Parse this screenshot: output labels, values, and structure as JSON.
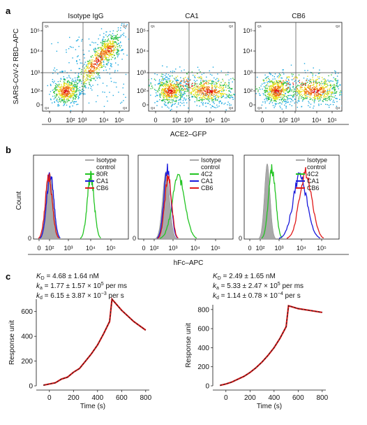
{
  "panels": {
    "a": {
      "label": "a",
      "y_label": "SARS-CoV-2 RBD–APC",
      "x_label": "ACE2–GFP",
      "plots": [
        {
          "title": "Isotype IgG",
          "pattern": "diagonal"
        },
        {
          "title": "CA1",
          "pattern": "blocked"
        },
        {
          "title": "CB6",
          "pattern": "blocked"
        }
      ],
      "y_ticks": [
        "10⁵",
        "10⁴",
        "10³",
        "10²",
        "0"
      ],
      "x_ticks": [
        "0",
        "10²",
        "10³",
        "10⁴",
        "10⁵"
      ],
      "quadrants": [
        "Q1",
        "Q2",
        "Q4",
        "Q3"
      ]
    },
    "b": {
      "label": "b",
      "y_label": "Count",
      "x_label": "hFc–APC",
      "x_ticks": [
        "0",
        "10²",
        "10³",
        "10⁴",
        "10⁵"
      ],
      "plots": [
        {
          "legend": [
            "Isotype control",
            "80R",
            "CA1",
            "CB6"
          ]
        },
        {
          "legend": [
            "Isotype control",
            "4C2",
            "CA1",
            "CB6"
          ]
        },
        {
          "legend": [
            "Isotype control",
            "4C2",
            "CA1",
            "CB6"
          ]
        }
      ],
      "legend_colors": [
        "#a9a9a9",
        "#22c422",
        "#1a1adc",
        "#e01818"
      ]
    },
    "c": {
      "label": "c",
      "y_label": "Response unit",
      "x_label": "Time (s)",
      "plots": [
        {
          "kd_label": "K",
          "kd_sub": "D",
          "kd_value": " = 4.68 ± 1.64 nM",
          "ka_label": "k",
          "ka_sub": "a",
          "ka_value": " = 1.77 ± 1.57 × 10",
          "ka_exp": "5",
          "ka_unit": " per ms",
          "kdiss_label": "k",
          "kdiss_sub": "d",
          "kdiss_value": " = 6.15 ± 3.87 × 10",
          "kdiss_exp": "−3",
          "kdiss_unit": " per s",
          "y_ticks": [
            "0",
            "200",
            "400",
            "600"
          ],
          "x_ticks": [
            "0",
            "200",
            "400",
            "600",
            "800"
          ]
        },
        {
          "kd_label": "K",
          "kd_sub": "D",
          "kd_value": " = 2.49 ± 1.65 nM",
          "ka_label": "k",
          "ka_sub": "a",
          "ka_value": " = 5.33 ± 2.47 × 10",
          "ka_exp": "5",
          "ka_unit": " per ms",
          "kdiss_label": "k",
          "kdiss_sub": "d",
          "kdiss_value": " = 1.14 ± 0.78 × 10",
          "kdiss_exp": "−4",
          "kdiss_unit": " per s",
          "y_ticks": [
            "0",
            "200",
            "400",
            "600",
            "800"
          ],
          "x_ticks": [
            "0",
            "200",
            "400",
            "600",
            "800"
          ]
        }
      ]
    }
  },
  "chart_data": [
    {
      "type": "line",
      "panel": "c-left",
      "xlabel": "Time (s)",
      "ylabel": "Response unit",
      "xlim": [
        -80,
        830
      ],
      "ylim": [
        0,
        700
      ],
      "x": [
        -50,
        0,
        50,
        100,
        150,
        200,
        250,
        300,
        350,
        400,
        450,
        500,
        520,
        600,
        700,
        800
      ],
      "y": [
        5,
        15,
        25,
        55,
        70,
        110,
        140,
        200,
        260,
        330,
        420,
        520,
        700,
        610,
        520,
        450
      ]
    },
    {
      "type": "line",
      "panel": "c-right",
      "xlabel": "Time (s)",
      "ylabel": "Response unit",
      "xlim": [
        -80,
        830
      ],
      "ylim": [
        0,
        850
      ],
      "x": [
        -50,
        0,
        50,
        100,
        150,
        200,
        250,
        300,
        350,
        400,
        450,
        500,
        520,
        600,
        700,
        800
      ],
      "y": [
        5,
        20,
        40,
        70,
        100,
        140,
        190,
        250,
        320,
        400,
        500,
        620,
        840,
        810,
        790,
        770
      ]
    }
  ]
}
